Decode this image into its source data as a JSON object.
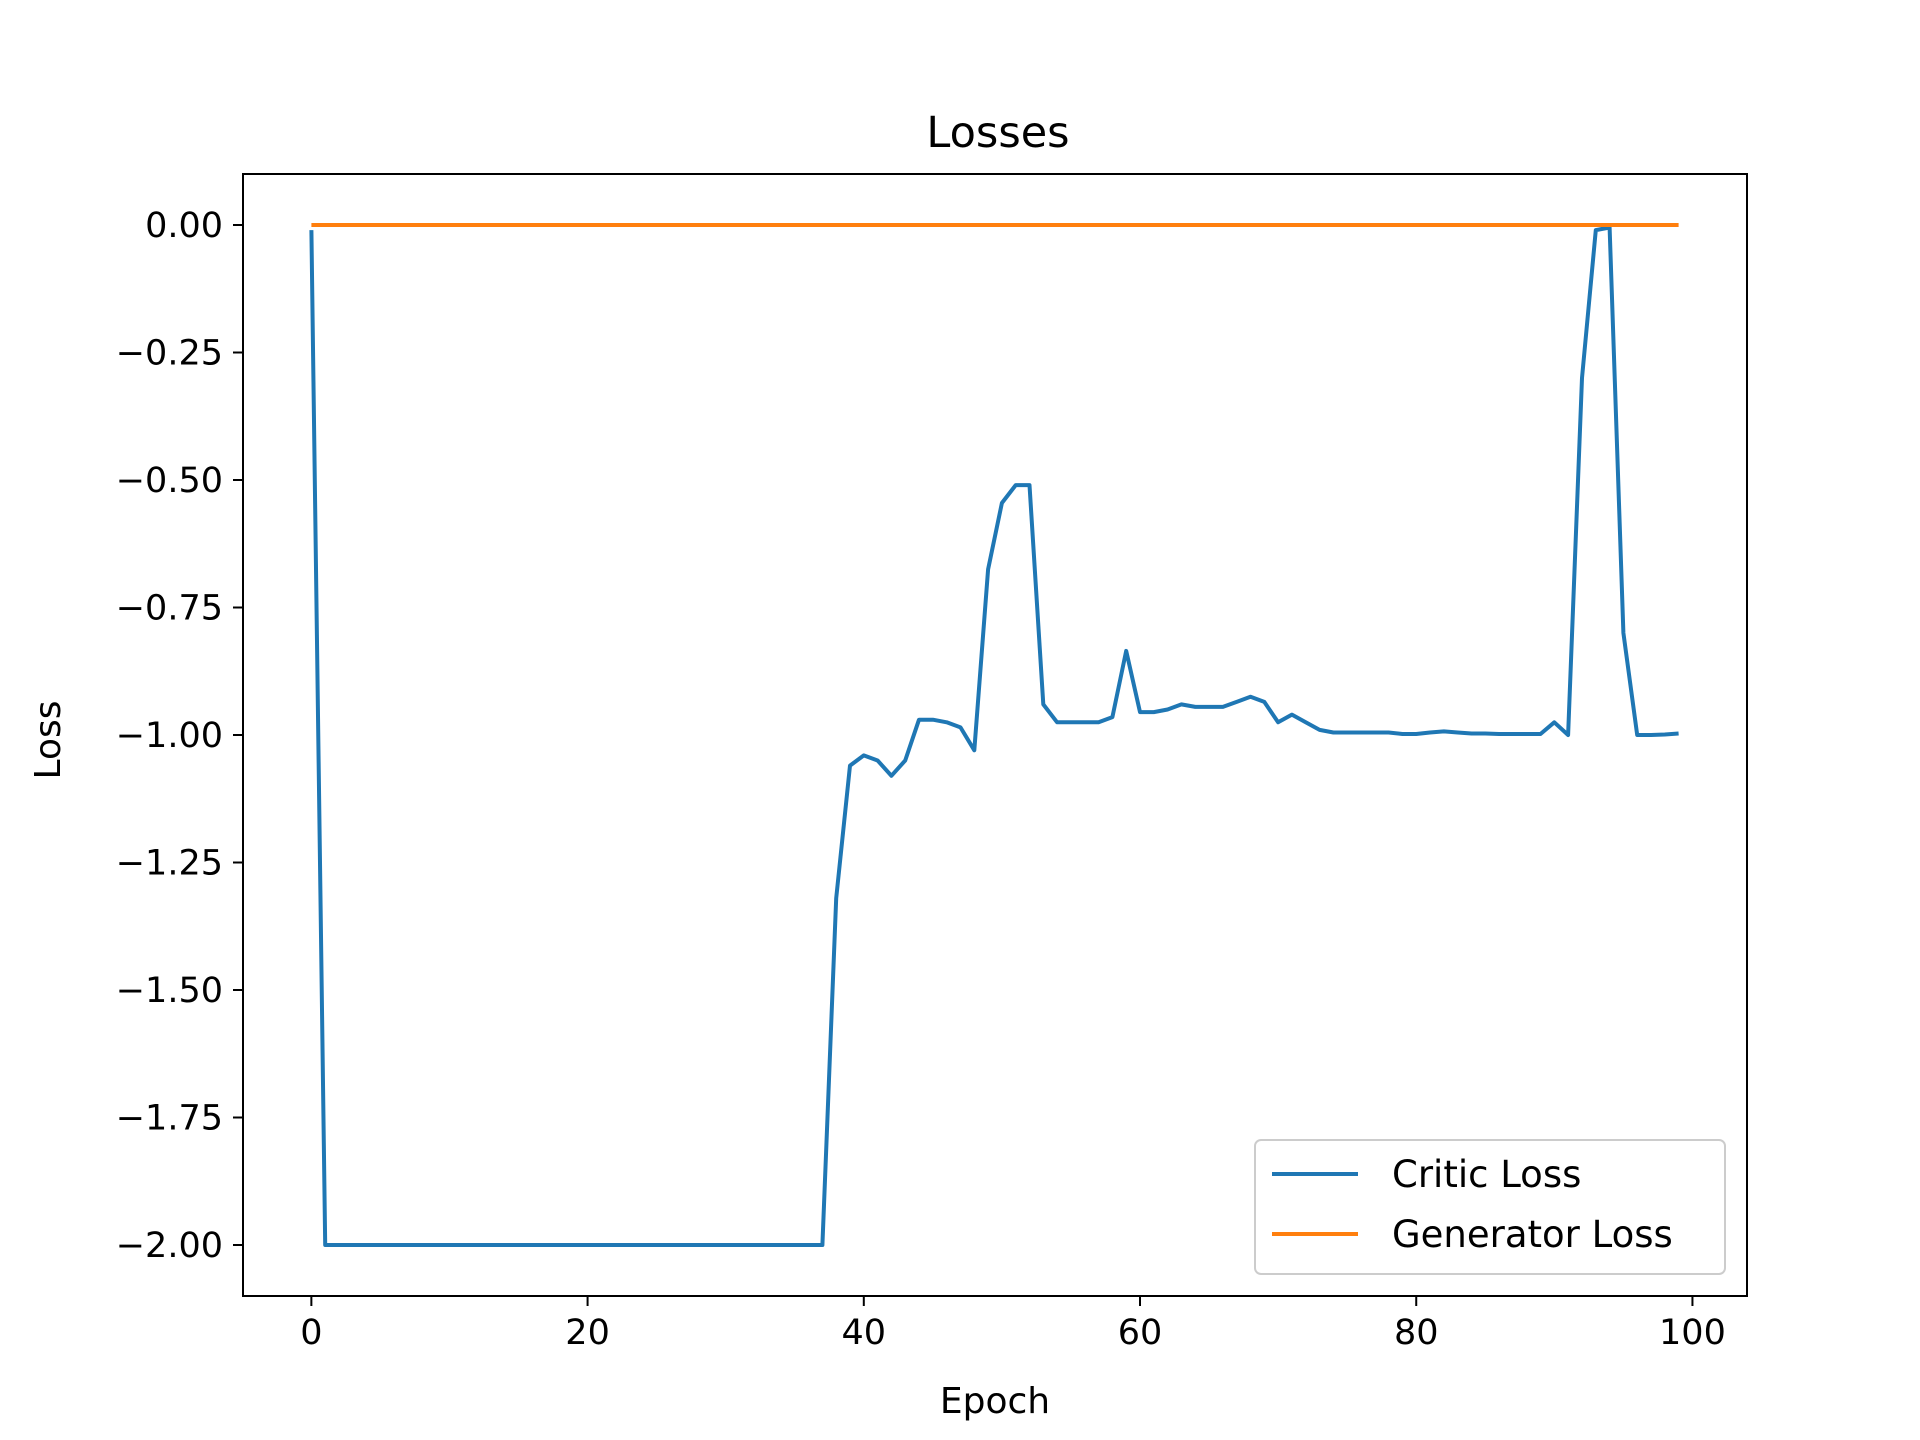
{
  "chart_data": {
    "type": "line",
    "title": "Losses",
    "xlabel": "Epoch",
    "ylabel": "Loss",
    "xlim": [
      -4.95,
      103.95
    ],
    "ylim": [
      -2.1,
      0.1
    ],
    "xticks": [
      0,
      20,
      40,
      60,
      80,
      100
    ],
    "xtick_labels": [
      "0",
      "20",
      "40",
      "60",
      "80",
      "100"
    ],
    "yticks": [
      0.0,
      -0.25,
      -0.5,
      -0.75,
      -1.0,
      -1.25,
      -1.5,
      -1.75,
      -2.0
    ],
    "ytick_labels": [
      "0.00",
      "−0.25",
      "−0.50",
      "−0.75",
      "−1.00",
      "−1.25",
      "−1.50",
      "−1.75",
      "−2.00"
    ],
    "grid": false,
    "legend_position": "bottom-right",
    "series": [
      {
        "name": "Critic Loss",
        "color": "#1f77b4",
        "x": [
          0,
          1,
          2,
          3,
          4,
          5,
          6,
          7,
          8,
          9,
          10,
          11,
          12,
          13,
          14,
          15,
          16,
          17,
          18,
          19,
          20,
          21,
          22,
          23,
          24,
          25,
          26,
          27,
          28,
          29,
          30,
          31,
          32,
          33,
          34,
          35,
          36,
          37,
          38,
          39,
          40,
          41,
          42,
          43,
          44,
          45,
          46,
          47,
          48,
          49,
          50,
          51,
          52,
          53,
          54,
          55,
          56,
          57,
          58,
          59,
          60,
          61,
          62,
          63,
          64,
          65,
          66,
          67,
          68,
          69,
          70,
          71,
          72,
          73,
          74,
          75,
          76,
          77,
          78,
          79,
          80,
          81,
          82,
          83,
          84,
          85,
          86,
          87,
          88,
          89,
          90,
          91,
          92,
          93,
          94,
          95,
          96,
          97,
          98,
          99
        ],
        "values": [
          -0.01,
          -2.0,
          -2.0,
          -2.0,
          -2.0,
          -2.0,
          -2.0,
          -2.0,
          -2.0,
          -2.0,
          -2.0,
          -2.0,
          -2.0,
          -2.0,
          -2.0,
          -2.0,
          -2.0,
          -2.0,
          -2.0,
          -2.0,
          -2.0,
          -2.0,
          -2.0,
          -2.0,
          -2.0,
          -2.0,
          -2.0,
          -2.0,
          -2.0,
          -2.0,
          -2.0,
          -2.0,
          -2.0,
          -2.0,
          -2.0,
          -2.0,
          -2.0,
          -2.0,
          -1.32,
          -1.06,
          -1.04,
          -1.05,
          -1.08,
          -1.05,
          -0.97,
          -0.97,
          -0.975,
          -0.985,
          -1.03,
          -0.675,
          -0.545,
          -0.51,
          -0.51,
          -0.94,
          -0.975,
          -0.975,
          -0.975,
          -0.975,
          -0.965,
          -0.835,
          -0.955,
          -0.955,
          -0.95,
          -0.94,
          -0.945,
          -0.945,
          -0.945,
          -0.935,
          -0.925,
          -0.935,
          -0.975,
          -0.96,
          -0.975,
          -0.99,
          -0.995,
          -0.995,
          -0.995,
          -0.995,
          -0.995,
          -0.998,
          -0.998,
          -0.995,
          -0.993,
          -0.995,
          -0.997,
          -0.997,
          -0.998,
          -0.998,
          -0.998,
          -0.998,
          -0.975,
          -1.0,
          -0.3,
          -0.01,
          -0.005,
          -0.8,
          -1.0,
          -1.0,
          -0.999,
          -0.997
        ]
      },
      {
        "name": "Generator Loss",
        "color": "#ff7f0e",
        "x": [
          0,
          99
        ],
        "values": [
          0.0,
          0.0
        ]
      }
    ]
  }
}
